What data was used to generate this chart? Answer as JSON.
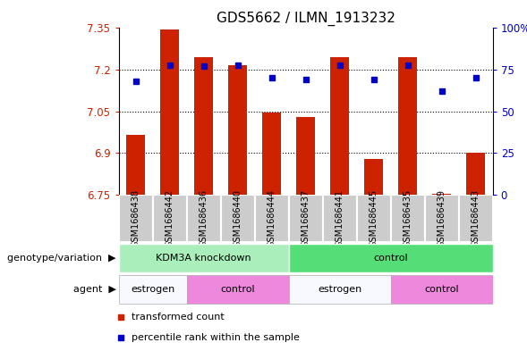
{
  "title": "GDS5662 / ILMN_1913232",
  "samples": [
    "GSM1686438",
    "GSM1686442",
    "GSM1686436",
    "GSM1686440",
    "GSM1686444",
    "GSM1686437",
    "GSM1686441",
    "GSM1686445",
    "GSM1686435",
    "GSM1686439",
    "GSM1686443"
  ],
  "bar_values": [
    6.965,
    7.345,
    7.245,
    7.215,
    7.045,
    7.03,
    7.245,
    6.88,
    7.245,
    6.755,
    6.9
  ],
  "dot_values": [
    68,
    78,
    77,
    78,
    70,
    69,
    78,
    69,
    78,
    62,
    70
  ],
  "ylim_left": [
    6.75,
    7.35
  ],
  "ylim_right": [
    0,
    100
  ],
  "yticks_left": [
    6.75,
    6.9,
    7.05,
    7.2,
    7.35
  ],
  "yticks_right": [
    0,
    25,
    50,
    75,
    100
  ],
  "ytick_labels_left": [
    "6.75",
    "6.9",
    "7.05",
    "7.2",
    "7.35"
  ],
  "ytick_labels_right": [
    "0",
    "25",
    "50",
    "75",
    "100%"
  ],
  "grid_values": [
    7.2,
    7.05,
    6.9
  ],
  "bar_color": "#cc2200",
  "dot_color": "#0000cc",
  "genotype_groups": [
    {
      "label": "KDM3A knockdown",
      "start": 0,
      "end": 5,
      "color": "#aaeebb"
    },
    {
      "label": "control",
      "start": 5,
      "end": 11,
      "color": "#55dd77"
    }
  ],
  "agent_groups": [
    {
      "label": "estrogen",
      "start": 0,
      "end": 2,
      "color": "#f8f8ff"
    },
    {
      "label": "control",
      "start": 2,
      "end": 5,
      "color": "#ee88dd"
    },
    {
      "label": "estrogen",
      "start": 5,
      "end": 8,
      "color": "#f8f8ff"
    },
    {
      "label": "control",
      "start": 8,
      "end": 11,
      "color": "#ee88dd"
    }
  ],
  "legend_items": [
    {
      "label": "transformed count",
      "color": "#cc2200"
    },
    {
      "label": "percentile rank within the sample",
      "color": "#0000cc"
    }
  ],
  "bg_color": "#ffffff",
  "sample_bg_color": "#cccccc",
  "title_fontsize": 11,
  "tick_fontsize": 8.5,
  "annotation_fontsize": 8,
  "sample_fontsize": 7
}
